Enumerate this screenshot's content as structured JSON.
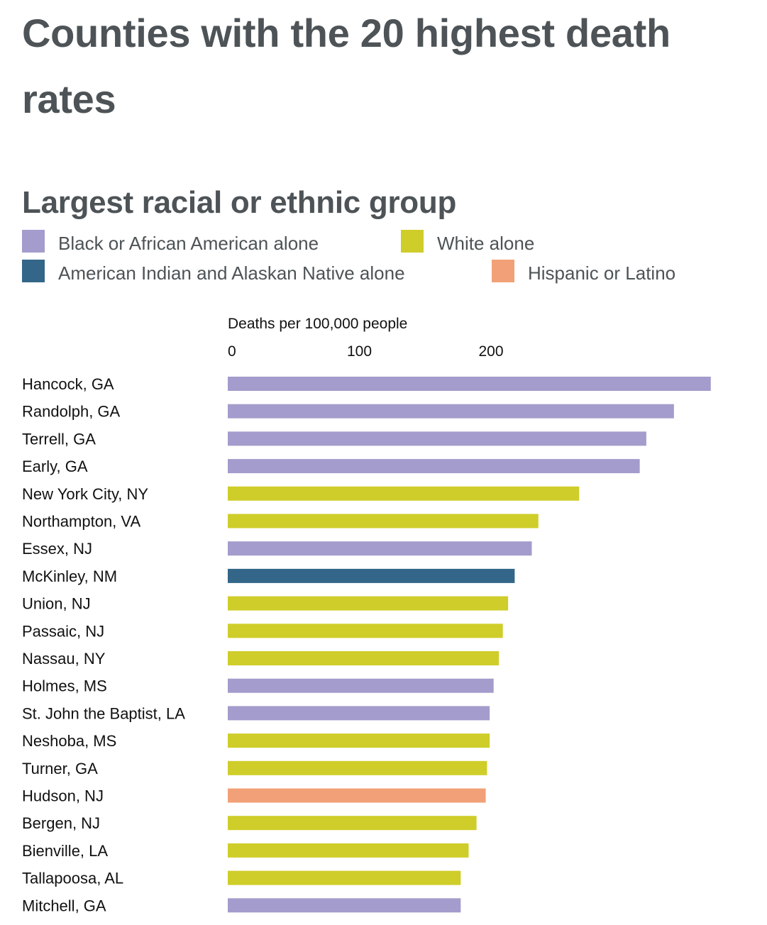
{
  "title": "Counties with the 20 highest death rates",
  "legend": {
    "title": "Largest racial or ethnic group",
    "items": [
      {
        "key": "black",
        "label": "Black or African American alone",
        "color": "#a39ccc"
      },
      {
        "key": "white",
        "label": "White alone",
        "color": "#cfcd2a"
      },
      {
        "key": "aian",
        "label": "American Indian and Alaskan Native alone",
        "color": "#336689"
      },
      {
        "key": "hispanic",
        "label": "Hispanic or Latino",
        "color": "#f2a077"
      }
    ]
  },
  "chart_data": {
    "type": "bar",
    "orientation": "horizontal",
    "title": "Counties with the 20 highest death rates",
    "xlabel": "Deaths per 100,000 people",
    "ylabel": "",
    "xlim": [
      0,
      367
    ],
    "xticks": [
      0,
      100,
      200
    ],
    "grid": false,
    "legend_title": "Largest racial or ethnic group",
    "legend_position": "top",
    "categories": [
      "Hancock, GA",
      "Randolph, GA",
      "Terrell, GA",
      "Early, GA",
      "New York City, NY",
      "Northampton, VA",
      "Essex, NJ",
      "McKinley, NM",
      "Union, NJ",
      "Passaic, NJ",
      "Nassau, NY",
      "Holmes, MS",
      "St. John the Baptist, LA",
      "Neshoba, MS",
      "Turner, GA",
      "Hudson, NJ",
      "Bergen, NJ",
      "Bienville, LA",
      "Tallapoosa, AL",
      "Mitchell, GA"
    ],
    "values": [
      367,
      339,
      318,
      313,
      267,
      236,
      231,
      218,
      213,
      209,
      206,
      202,
      199,
      199,
      197,
      196,
      189,
      183,
      177,
      177
    ],
    "groups": [
      "black",
      "black",
      "black",
      "black",
      "white",
      "white",
      "black",
      "aian",
      "white",
      "white",
      "white",
      "black",
      "black",
      "white",
      "white",
      "hispanic",
      "white",
      "white",
      "white",
      "black"
    ]
  }
}
